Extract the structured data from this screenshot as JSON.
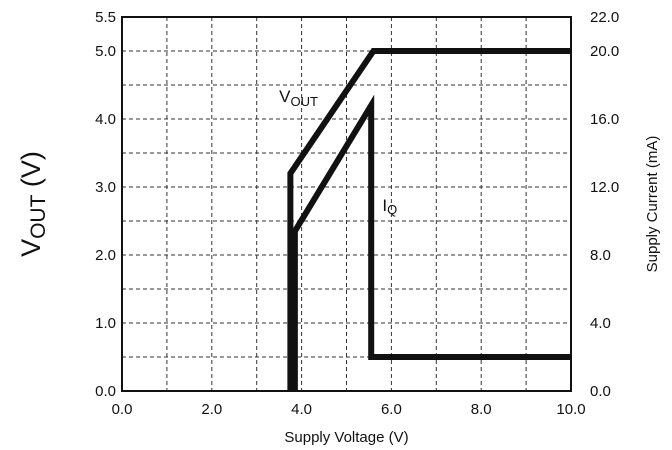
{
  "chart_data": {
    "type": "line",
    "xlabel": "Supply Voltage (V)",
    "ylabel_left": {
      "main": "V",
      "sub": "OUT",
      "rest": " (V)"
    },
    "ylabel_right": "Supply Current (mA)",
    "xlim": [
      0,
      10
    ],
    "ylim_left": [
      0,
      5.5
    ],
    "ylim_right": [
      0,
      22
    ],
    "x_ticks": [
      "0.0",
      "2.0",
      "4.0",
      "6.0",
      "8.0",
      "10.0"
    ],
    "y_left_ticks": [
      "0.0",
      "1.0",
      "2.0",
      "3.0",
      "4.0",
      "5.0",
      "5.5"
    ],
    "y_right_ticks": [
      "0.0",
      "4.0",
      "8.0",
      "12.0",
      "16.0",
      "20.0",
      "22.0"
    ],
    "grid": true,
    "series": [
      {
        "name": {
          "main": "V",
          "sub": "OUT"
        },
        "axis": "left",
        "x": [
          3.75,
          3.75,
          5.6,
          10.0
        ],
        "y": [
          0.0,
          3.2,
          5.0,
          5.0
        ]
      },
      {
        "name": {
          "main": "I",
          "sub": "Q"
        },
        "axis": "left",
        "x": [
          3.85,
          3.85,
          5.55,
          5.55,
          10.0
        ],
        "y": [
          0.0,
          2.35,
          4.2,
          0.5,
          0.5
        ]
      }
    ]
  }
}
